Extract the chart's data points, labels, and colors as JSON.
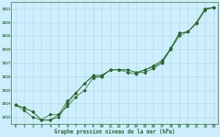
{
  "background_color": "#cceeff",
  "grid_color": "#aacccc",
  "line_color": "#2d6a2d",
  "xlabel": "Graphe pression niveau de la mer (hPa)",
  "xlim_min": -0.5,
  "xlim_max": 23.5,
  "ylim_min": 1012.5,
  "ylim_max": 1021.5,
  "yticks": [
    1013,
    1014,
    1015,
    1016,
    1017,
    1018,
    1019,
    1020,
    1021
  ],
  "xticks": [
    0,
    1,
    2,
    3,
    4,
    5,
    6,
    7,
    8,
    9,
    10,
    11,
    12,
    13,
    14,
    15,
    16,
    17,
    18,
    19,
    20,
    21,
    22,
    23
  ],
  "series1_x": [
    0,
    1,
    2,
    3,
    4,
    5,
    6,
    7,
    8,
    9,
    10,
    11,
    12,
    13,
    14,
    15,
    16,
    17,
    18,
    19,
    20,
    21,
    22,
    23
  ],
  "series1_y": [
    1013.9,
    1013.7,
    1013.4,
    1012.8,
    1012.8,
    1013.2,
    1013.8,
    1014.5,
    1015.0,
    1015.9,
    1016.0,
    1016.5,
    1016.5,
    1016.5,
    1016.3,
    1016.3,
    1016.6,
    1017.0,
    1018.0,
    1019.0,
    1019.3,
    1020.0,
    1021.0,
    1021.1
  ],
  "series2_x": [
    0,
    1,
    2,
    3,
    4,
    5,
    6,
    7,
    8,
    9,
    10,
    11,
    12,
    13,
    14,
    15,
    16,
    17,
    18,
    19,
    20,
    21,
    22,
    23
  ],
  "series2_y": [
    1013.9,
    1013.7,
    1013.4,
    1012.8,
    1013.2,
    1013.2,
    1014.2,
    1014.8,
    1015.5,
    1016.0,
    1016.0,
    1016.5,
    1016.5,
    1016.5,
    1016.3,
    1016.5,
    1016.8,
    1017.2,
    1018.1,
    1019.2,
    1019.3,
    1020.0,
    1021.0,
    1021.1
  ],
  "series3_x": [
    0,
    1,
    2,
    3,
    4,
    5,
    6,
    7,
    8,
    9,
    10,
    11,
    12,
    13,
    14,
    15,
    16,
    17,
    18,
    19,
    20,
    21,
    22,
    23
  ],
  "series3_y": [
    1013.9,
    1013.5,
    1013.0,
    1012.8,
    1012.8,
    1013.0,
    1014.0,
    1014.8,
    1015.5,
    1016.1,
    1016.1,
    1016.5,
    1016.5,
    1016.3,
    1016.2,
    1016.5,
    1016.7,
    1017.1,
    1018.0,
    1019.2,
    1019.3,
    1019.9,
    1020.9,
    1021.1
  ],
  "tick_fontsize": 4.0,
  "xlabel_fontsize": 5.5,
  "marker_size": 2.0,
  "linewidth": 0.7
}
